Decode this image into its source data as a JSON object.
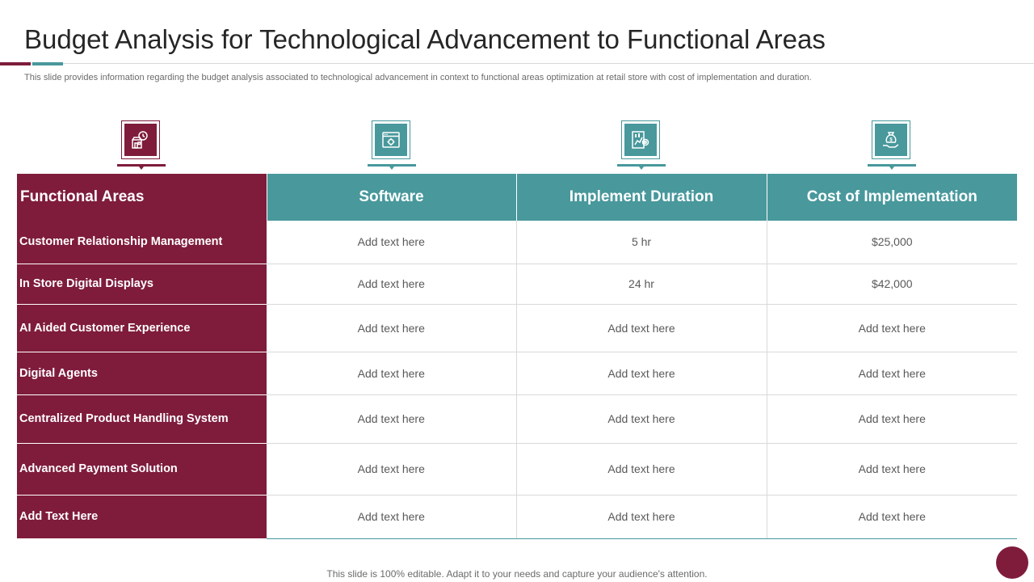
{
  "slide": {
    "title": "Budget Analysis for Technological Advancement to Functional Areas",
    "subtitle": "This slide provides information regarding the budget analysis associated to technological advancement in context to functional areas optimization at retail store with cost of implementation and duration.",
    "footer": "This slide is 100% editable. Adapt it to your needs and capture your audience's attention."
  },
  "colors": {
    "maroon": "#7f1c3b",
    "teal": "#48989c"
  },
  "icons": [
    {
      "name": "store-clock-icon",
      "color": "maroon"
    },
    {
      "name": "browser-gear-icon",
      "color": "teal"
    },
    {
      "name": "chart-gear-icon",
      "color": "teal"
    },
    {
      "name": "money-bag-hand-icon",
      "color": "teal"
    }
  ],
  "table": {
    "headers": [
      "Functional Areas",
      "Software",
      "Implement Duration",
      "Cost of Implementation"
    ],
    "rows": [
      [
        "Customer Relationship Management",
        "Add text here",
        "5 hr",
        "$25,000"
      ],
      [
        "In Store Digital Displays",
        "Add text here",
        "24 hr",
        "$42,000"
      ],
      [
        "AI Aided Customer Experience",
        "Add text here",
        "Add text here",
        "Add text here"
      ],
      [
        "Digital Agents",
        "Add text here",
        "Add text here",
        "Add text here"
      ],
      [
        "Centralized Product Handling System",
        "Add text here",
        "Add text here",
        "Add text here"
      ],
      [
        "Advanced Payment  Solution",
        "Add text here",
        "Add text here",
        "Add text here"
      ],
      [
        "Add  Text Here",
        "Add text here",
        "Add text here",
        "Add text here"
      ]
    ]
  }
}
